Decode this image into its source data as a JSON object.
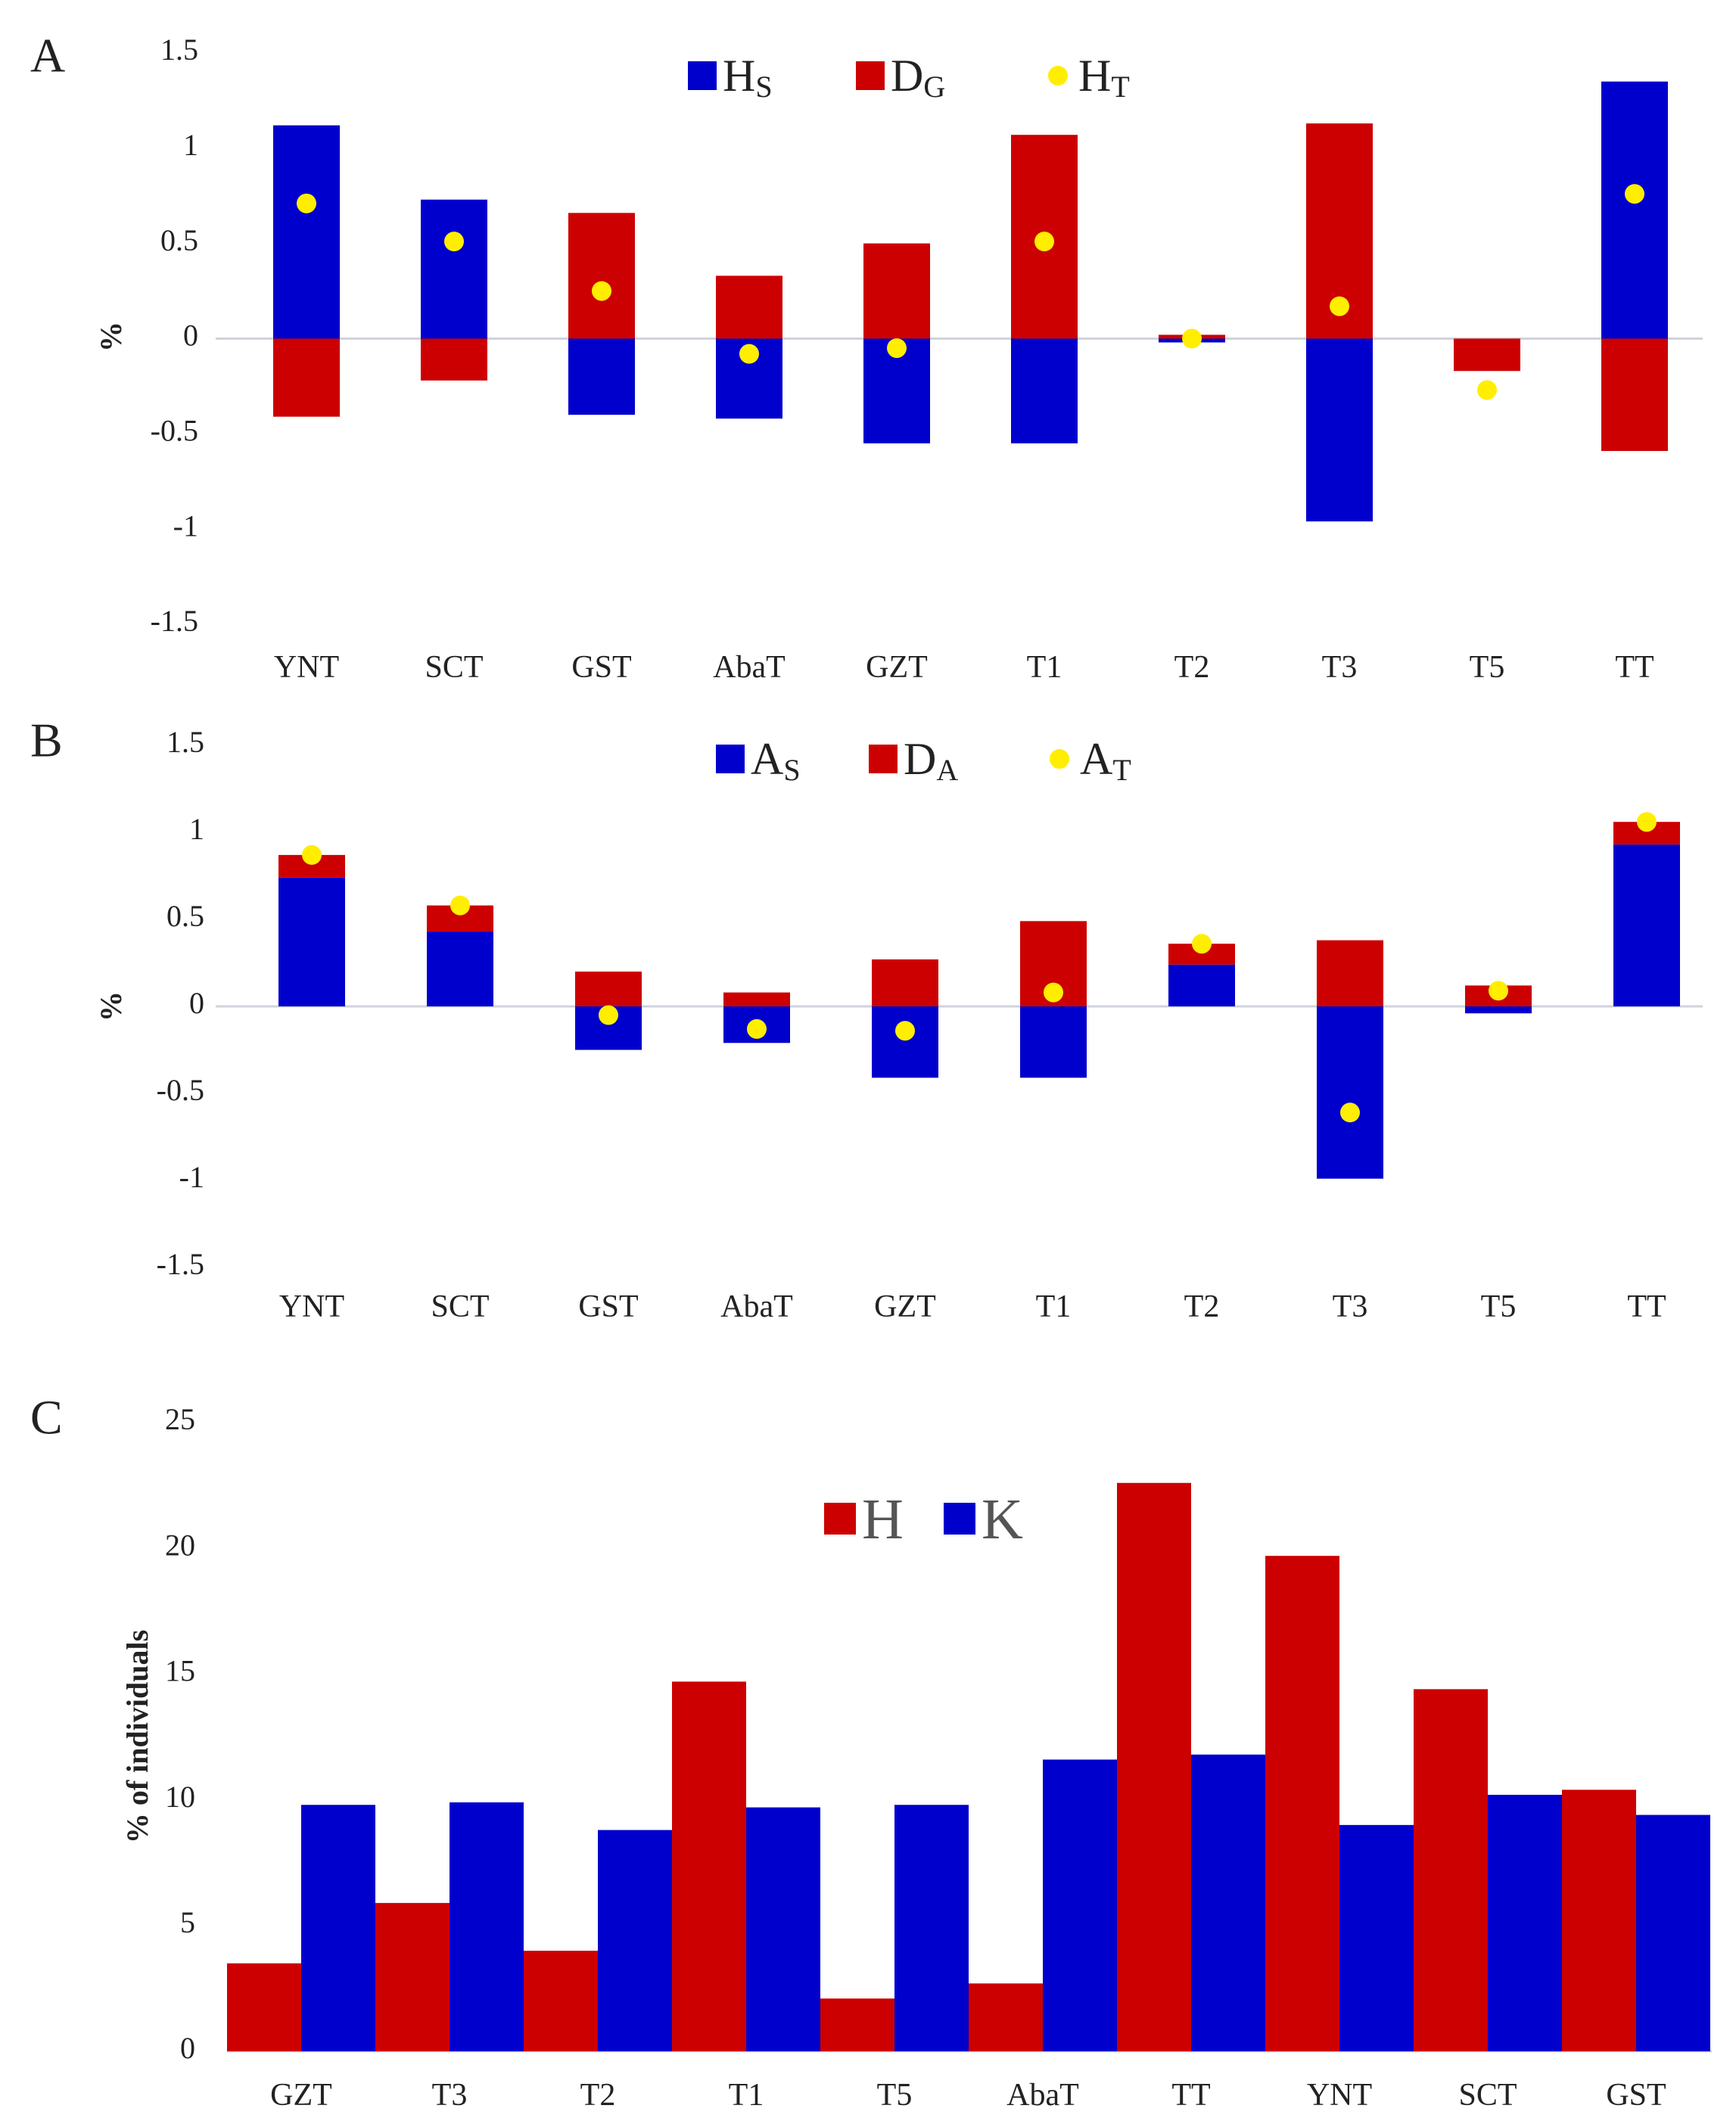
{
  "chart_data": [
    {
      "panel": "A",
      "type": "bar",
      "ylabel": "%",
      "ylim": [
        -1.5,
        1.5
      ],
      "yticks": [
        "1.5",
        "1",
        "0.5",
        "0",
        "-0.5",
        "-1",
        "-1.5"
      ],
      "categories": [
        "YNT",
        "SCT",
        "GST",
        "AbaT",
        "GZT",
        "T1",
        "T2",
        "T3",
        "T5",
        "TT"
      ],
      "legend": [
        {
          "main": "H",
          "sub": "S",
          "color": "#0000cc",
          "kind": "bar"
        },
        {
          "main": "D",
          "sub": "G",
          "color": "#cc0000",
          "kind": "bar"
        },
        {
          "main": "H",
          "sub": "T",
          "color": "#ffee00",
          "kind": "dot"
        }
      ],
      "series": [
        {
          "name": "HS",
          "color": "#0000cc",
          "values": [
            1.12,
            0.73,
            -0.4,
            -0.42,
            -0.55,
            -0.55,
            -0.02,
            -0.96,
            -0.1,
            1.35
          ]
        },
        {
          "name": "DG",
          "color": "#cc0000",
          "values": [
            -0.41,
            -0.22,
            0.66,
            0.33,
            0.5,
            1.07,
            0.02,
            1.13,
            -0.17,
            -0.59
          ]
        },
        {
          "name": "HT",
          "color": "#ffee00",
          "values": [
            0.71,
            0.51,
            0.25,
            -0.08,
            -0.05,
            0.51,
            0.0,
            0.17,
            -0.27,
            0.76
          ]
        }
      ]
    },
    {
      "panel": "B",
      "type": "bar",
      "ylabel": "%",
      "ylim": [
        -1.5,
        1.5
      ],
      "yticks": [
        "1.5",
        "1",
        "0.5",
        "0",
        "-0.5",
        "-1",
        "-1.5"
      ],
      "categories": [
        "YNT",
        "SCT",
        "GST",
        "AbaT",
        "GZT",
        "T1",
        "T2",
        "T3",
        "T5",
        "TT"
      ],
      "legend": [
        {
          "main": "A",
          "sub": "S",
          "color": "#0000cc",
          "kind": "bar"
        },
        {
          "main": "D",
          "sub": "A",
          "color": "#cc0000",
          "kind": "bar"
        },
        {
          "main": "A",
          "sub": "T",
          "color": "#ffee00",
          "kind": "dot"
        }
      ],
      "series": [
        {
          "name": "AS",
          "color": "#0000cc",
          "values": [
            0.74,
            0.43,
            -0.25,
            -0.21,
            -0.41,
            -0.41,
            0.24,
            -0.99,
            -0.04,
            0.93
          ]
        },
        {
          "name": "DA",
          "color": "#cc0000",
          "values": [
            0.13,
            0.15,
            0.2,
            0.08,
            0.27,
            0.49,
            0.12,
            0.38,
            0.12,
            0.13
          ]
        },
        {
          "name": "AT",
          "color": "#ffee00",
          "values": [
            0.87,
            0.58,
            -0.05,
            -0.13,
            -0.14,
            0.08,
            0.36,
            -0.61,
            0.09,
            1.06
          ]
        }
      ]
    },
    {
      "panel": "C",
      "type": "bar",
      "ylabel": "% of individuals",
      "ylim": [
        0,
        25
      ],
      "yticks": [
        "25",
        "20",
        "15",
        "10",
        "5",
        "0"
      ],
      "categories": [
        "GZT",
        "T3",
        "T2",
        "T1",
        "T5",
        "AbaT",
        "TT",
        "YNT",
        "SCT",
        "GST"
      ],
      "legend": [
        {
          "main": "H",
          "color": "#cc0000",
          "kind": "bar"
        },
        {
          "main": "K",
          "color": "#0000cc",
          "kind": "bar"
        }
      ],
      "series": [
        {
          "name": "H",
          "color": "#cc0000",
          "values": [
            3.5,
            5.9,
            4.0,
            14.7,
            2.1,
            2.7,
            22.6,
            19.7,
            14.4,
            10.4
          ]
        },
        {
          "name": "K",
          "color": "#0000cc",
          "values": [
            9.8,
            9.9,
            8.8,
            9.7,
            9.8,
            11.6,
            11.8,
            9.0,
            10.2,
            9.4
          ]
        }
      ]
    }
  ]
}
